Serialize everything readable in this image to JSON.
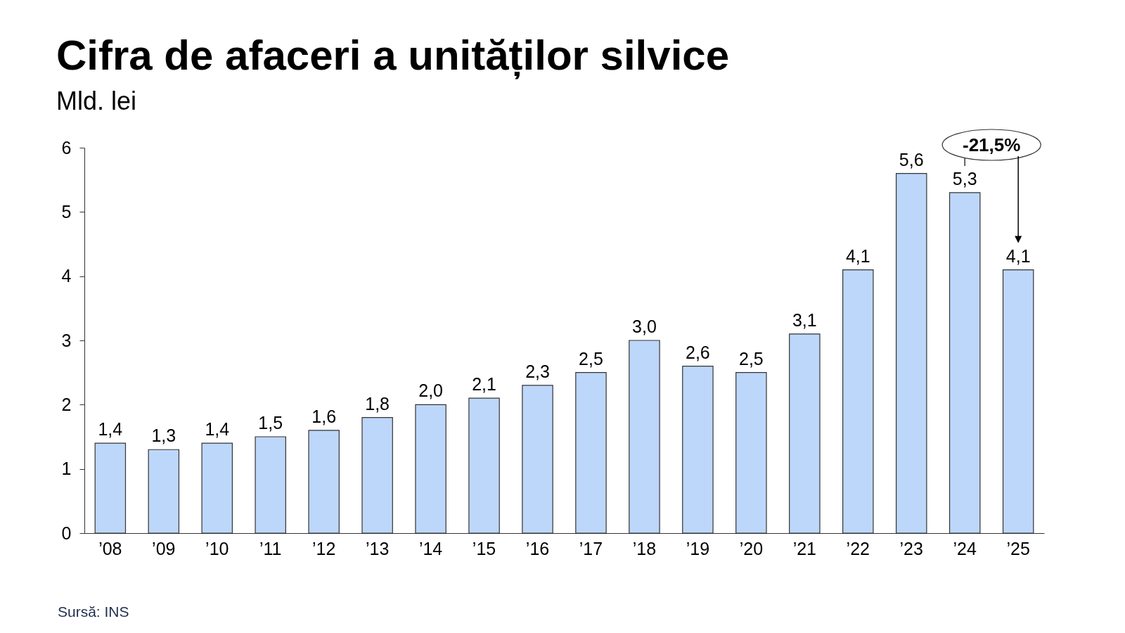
{
  "chart_data": {
    "type": "bar",
    "title": "Cifra de afaceri a unităților silvice",
    "subtitle": "Mld. lei",
    "categories": [
      "’08",
      "’09",
      "’10",
      "’11",
      "’12",
      "’13",
      "’14",
      "’15",
      "’16",
      "’17",
      "’18",
      "’19",
      "’20",
      "’21",
      "’22",
      "’23",
      "’24",
      "’25"
    ],
    "values": [
      1.4,
      1.3,
      1.4,
      1.5,
      1.6,
      1.8,
      2.0,
      2.1,
      2.3,
      2.5,
      3.0,
      2.6,
      2.5,
      3.1,
      4.1,
      5.6,
      5.3,
      4.1
    ],
    "value_labels": [
      "1,4",
      "1,3",
      "1,4",
      "1,5",
      "1,6",
      "1,8",
      "2,0",
      "2,1",
      "2,3",
      "2,5",
      "3,0",
      "2,6",
      "2,5",
      "3,1",
      "4,1",
      "5,6",
      "5,3",
      "4,1"
    ],
    "color": "#bdd7fb",
    "ylim": [
      0,
      6
    ],
    "yticks": [
      0,
      1,
      2,
      3,
      4,
      5,
      6
    ],
    "grid": false,
    "annotations": [
      "-21,5%",
      "Sursă: INS"
    ]
  }
}
